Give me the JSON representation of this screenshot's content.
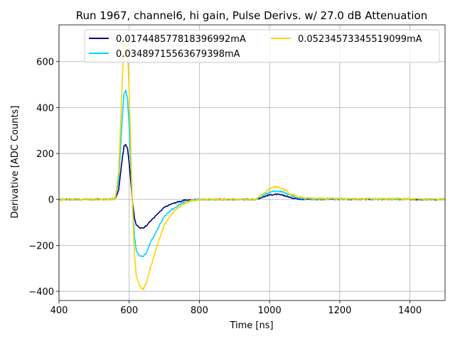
{
  "chart_data": {
    "type": "line",
    "title": "Run 1967, channel6, hi gain, Pulse Derivs. w/ 27.0 dB Attenuation",
    "xlabel": "Time [ns]",
    "ylabel": "Derivative [ADC Counts]",
    "xlim": [
      400,
      1500
    ],
    "ylim": [
      -440,
      760
    ],
    "xticks": [
      400,
      600,
      800,
      1000,
      1200,
      1400
    ],
    "yticks": [
      -400,
      -200,
      0,
      200,
      400,
      600
    ],
    "grid": true,
    "legend_position": "top",
    "series": [
      {
        "name": "0.017448577818396992mA",
        "color": "#00007f",
        "points": [
          [
            400,
            0
          ],
          [
            540,
            0
          ],
          [
            560,
            2
          ],
          [
            570,
            40
          ],
          [
            578,
            150
          ],
          [
            585,
            230
          ],
          [
            590,
            238
          ],
          [
            595,
            225
          ],
          [
            600,
            160
          ],
          [
            605,
            70
          ],
          [
            610,
            -20
          ],
          [
            615,
            -80
          ],
          [
            620,
            -110
          ],
          [
            630,
            -125
          ],
          [
            640,
            -124
          ],
          [
            650,
            -112
          ],
          [
            660,
            -95
          ],
          [
            680,
            -65
          ],
          [
            700,
            -35
          ],
          [
            720,
            -20
          ],
          [
            740,
            -10
          ],
          [
            760,
            -3
          ],
          [
            800,
            0
          ],
          [
            960,
            0
          ],
          [
            980,
            10
          ],
          [
            1000,
            20
          ],
          [
            1020,
            22
          ],
          [
            1040,
            18
          ],
          [
            1060,
            8
          ],
          [
            1080,
            3
          ],
          [
            1100,
            1
          ],
          [
            1500,
            0
          ]
        ]
      },
      {
        "name": "0.03489715563679398mA",
        "color": "#00d5ff",
        "points": [
          [
            400,
            0
          ],
          [
            540,
            0
          ],
          [
            560,
            3
          ],
          [
            570,
            80
          ],
          [
            578,
            300
          ],
          [
            585,
            460
          ],
          [
            590,
            475
          ],
          [
            595,
            440
          ],
          [
            600,
            320
          ],
          [
            605,
            130
          ],
          [
            610,
            -40
          ],
          [
            615,
            -160
          ],
          [
            620,
            -220
          ],
          [
            630,
            -245
          ],
          [
            640,
            -250
          ],
          [
            650,
            -230
          ],
          [
            660,
            -190
          ],
          [
            680,
            -130
          ],
          [
            700,
            -75
          ],
          [
            720,
            -45
          ],
          [
            740,
            -25
          ],
          [
            760,
            -10
          ],
          [
            780,
            -3
          ],
          [
            800,
            0
          ],
          [
            960,
            0
          ],
          [
            980,
            15
          ],
          [
            1000,
            33
          ],
          [
            1020,
            38
          ],
          [
            1040,
            32
          ],
          [
            1060,
            18
          ],
          [
            1080,
            8
          ],
          [
            1100,
            3
          ],
          [
            1500,
            0
          ]
        ]
      },
      {
        "name": "0.05234573345519099mA",
        "color": "#ffd300",
        "points": [
          [
            400,
            0
          ],
          [
            540,
            0
          ],
          [
            560,
            5
          ],
          [
            570,
            120
          ],
          [
            578,
            430
          ],
          [
            585,
            690
          ],
          [
            590,
            705
          ],
          [
            595,
            650
          ],
          [
            600,
            470
          ],
          [
            605,
            200
          ],
          [
            610,
            -60
          ],
          [
            615,
            -240
          ],
          [
            620,
            -330
          ],
          [
            630,
            -380
          ],
          [
            640,
            -390
          ],
          [
            650,
            -360
          ],
          [
            660,
            -300
          ],
          [
            680,
            -200
          ],
          [
            700,
            -110
          ],
          [
            720,
            -65
          ],
          [
            740,
            -35
          ],
          [
            760,
            -15
          ],
          [
            780,
            -5
          ],
          [
            800,
            0
          ],
          [
            960,
            0
          ],
          [
            980,
            20
          ],
          [
            1000,
            48
          ],
          [
            1020,
            55
          ],
          [
            1040,
            45
          ],
          [
            1060,
            25
          ],
          [
            1080,
            12
          ],
          [
            1100,
            4
          ],
          [
            1500,
            0
          ]
        ]
      }
    ]
  }
}
